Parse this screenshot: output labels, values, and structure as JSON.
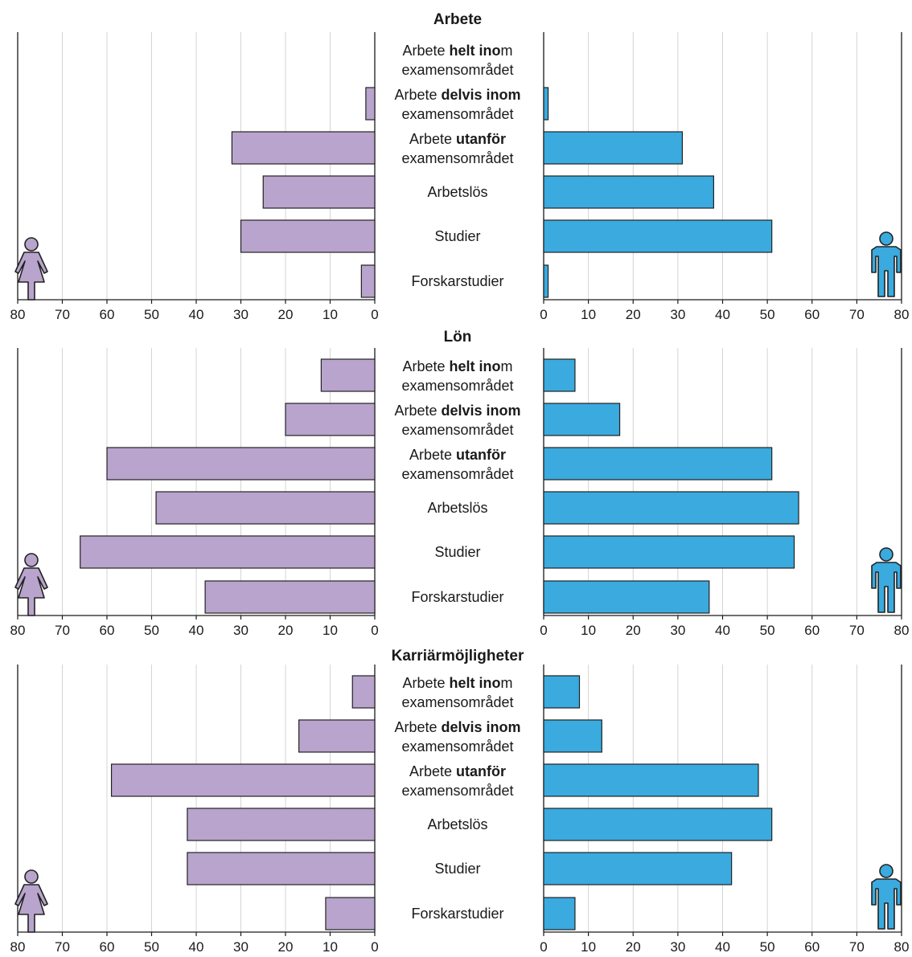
{
  "chart_data": [
    {
      "type": "bar",
      "title": "Arbete",
      "categories": [
        [
          "Arbete ",
          "helt ino",
          "m",
          "examensområdet"
        ],
        [
          "Arbete ",
          "delvis inom",
          "",
          "examensområdet"
        ],
        [
          "Arbete ",
          "utanför",
          "",
          "examensområdet"
        ],
        [
          "Arbetslös"
        ],
        [
          "Studier"
        ],
        [
          "Forskarstudier"
        ]
      ],
      "series": [
        {
          "values": [
            0,
            2,
            32,
            25,
            30,
            3
          ]
        },
        {
          "values": [
            0,
            1,
            31,
            38,
            51,
            1
          ]
        }
      ],
      "xlim": [
        0,
        80
      ],
      "ticks": [
        0,
        10,
        20,
        30,
        40,
        50,
        60,
        70,
        80
      ],
      "grid": true
    },
    {
      "type": "bar",
      "title": "Lön",
      "categories": [
        [
          "Arbete ",
          "helt ino",
          "m",
          "examensområdet"
        ],
        [
          "Arbete ",
          "delvis inom",
          "",
          "examensområdet"
        ],
        [
          "Arbete ",
          "utanför",
          "",
          "examensområdet"
        ],
        [
          "Arbetslös"
        ],
        [
          "Studier"
        ],
        [
          "Forskarstudier"
        ]
      ],
      "series": [
        {
          "values": [
            12,
            20,
            60,
            49,
            66,
            38
          ]
        },
        {
          "values": [
            7,
            17,
            51,
            57,
            56,
            37
          ]
        }
      ],
      "xlim": [
        0,
        80
      ],
      "ticks": [
        0,
        10,
        20,
        30,
        40,
        50,
        60,
        70,
        80
      ],
      "grid": true
    },
    {
      "type": "bar",
      "title": "Karriärmöjligheter",
      "categories": [
        [
          "Arbete ",
          "helt ino",
          "m",
          "examensområdet"
        ],
        [
          "Arbete ",
          "delvis inom",
          "",
          "examensområdet"
        ],
        [
          "Arbete ",
          "utanför",
          "",
          "examensområdet"
        ],
        [
          "Arbetslös"
        ],
        [
          "Studier"
        ],
        [
          "Forskarstudier"
        ]
      ],
      "series": [
        {
          "values": [
            5,
            17,
            59,
            42,
            42,
            11
          ]
        },
        {
          "values": [
            8,
            13,
            48,
            51,
            42,
            7
          ]
        }
      ],
      "xlim": [
        0,
        80
      ],
      "ticks": [
        0,
        10,
        20,
        30,
        40,
        50,
        60,
        70,
        80
      ],
      "grid": true
    }
  ],
  "colors": {
    "women": "#b8a4cc",
    "men": "#3aaadf",
    "grid": "#d4d4d4",
    "axis": "#1a1a1a",
    "text": "#1a1a1a"
  },
  "icons": {
    "women": "woman-icon",
    "men": "man-icon"
  }
}
